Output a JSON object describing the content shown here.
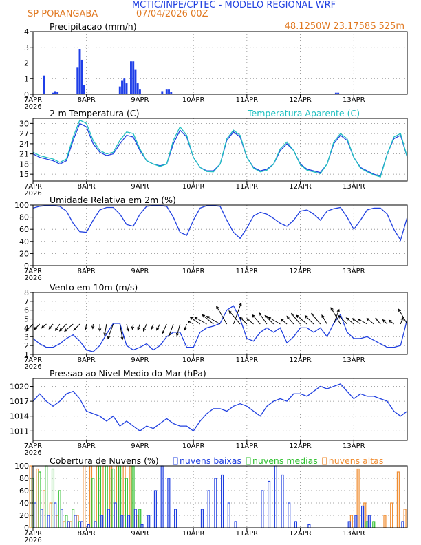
{
  "header": {
    "title": "MCTIC/INPE/CPTEC - MODELO REGIONAL WRF",
    "station": "SP PORANGABA",
    "run": "07/04/2026 00Z",
    "location": "48.1250W 23.1758S 525m"
  },
  "chart_data": [
    {
      "type": "bar",
      "title": "Precipitacao (mm/h)",
      "color": "#1f3fe8",
      "x": [
        5,
        9,
        10,
        11,
        20,
        21,
        22,
        23,
        39,
        40,
        41,
        42,
        44,
        45,
        46,
        47,
        48,
        58,
        60,
        61,
        62,
        136,
        137
      ],
      "values": [
        1.2,
        0.1,
        0.2,
        0.15,
        1.7,
        2.9,
        2.2,
        0.6,
        0.5,
        0.9,
        1.0,
        0.7,
        2.1,
        2.1,
        1.6,
        0.7,
        0.3,
        0.2,
        0.3,
        0.3,
        0.15,
        0.1,
        0.1
      ],
      "xlim": [
        0,
        168
      ],
      "xticks": [
        {
          "value": 0,
          "label": "7APR"
        },
        {
          "value": 24,
          "label": "8APR"
        },
        {
          "value": 48,
          "label": "9APR"
        },
        {
          "value": 72,
          "label": "10APR"
        },
        {
          "value": 96,
          "label": "11APR"
        },
        {
          "value": 120,
          "label": "12APR"
        },
        {
          "value": 144,
          "label": "13APR"
        }
      ],
      "year_label": "2026",
      "ylim": [
        0,
        4
      ],
      "yticks": [
        0,
        1,
        2,
        3,
        4
      ],
      "grid": true
    },
    {
      "type": "line",
      "title": "2-m Temperatura (C)",
      "x": [
        0,
        3,
        6,
        9,
        12,
        15,
        18,
        21,
        24,
        27,
        30,
        33,
        36,
        39,
        42,
        45,
        48,
        51,
        54,
        57,
        60,
        63,
        66,
        69,
        72,
        75,
        78,
        81,
        84,
        87,
        90,
        93,
        96,
        99,
        102,
        105,
        108,
        111,
        114,
        117,
        120,
        123,
        126,
        129,
        132,
        135,
        138,
        141,
        144,
        147,
        150,
        153,
        156,
        159,
        162,
        165,
        168
      ],
      "series": [
        {
          "color": "#2040e0",
          "values": [
            21,
            20,
            19.5,
            19,
            18,
            19,
            25,
            30,
            29,
            24,
            21.5,
            20.5,
            21,
            24,
            26.5,
            26,
            22,
            19,
            18,
            17.5,
            18,
            24,
            28,
            26,
            20,
            17,
            16,
            16,
            18,
            25,
            27.5,
            26,
            20,
            17,
            16,
            16.5,
            18,
            22,
            24,
            22,
            18,
            16.5,
            16,
            15.5,
            18,
            24,
            26.5,
            25,
            20,
            17,
            16,
            15,
            14.5,
            21,
            25.5,
            26.5,
            20
          ]
        },
        {
          "name": "Temperatura Aparente (C)",
          "color": "#20c0c0",
          "values": [
            21.5,
            20.5,
            20,
            19.5,
            18.5,
            19.5,
            26,
            31,
            30,
            25,
            22,
            21,
            21.5,
            25,
            27.5,
            27,
            22.5,
            19,
            18,
            17.3,
            18,
            25,
            29,
            26.5,
            20,
            17,
            15.8,
            15.7,
            18,
            25.5,
            28,
            26.5,
            20,
            16.8,
            15.7,
            16.2,
            18,
            22.5,
            24.5,
            22,
            17.8,
            16.2,
            15.7,
            15.2,
            18,
            24.5,
            27,
            25.5,
            20,
            16.8,
            15.7,
            14.8,
            14.2,
            21,
            26,
            27,
            20
          ]
        }
      ],
      "xlim": [
        0,
        168
      ],
      "xticks": [
        {
          "value": 0,
          "label": "7APR"
        },
        {
          "value": 24,
          "label": "8APR"
        },
        {
          "value": 48,
          "label": "9APR"
        },
        {
          "value": 72,
          "label": "10APR"
        },
        {
          "value": 96,
          "label": "11APR"
        },
        {
          "value": 120,
          "label": "12APR"
        },
        {
          "value": 144,
          "label": "13APR"
        }
      ],
      "year_label": "2026",
      "ylim": [
        13,
        31.5
      ],
      "yticks": [
        15,
        18,
        21,
        24,
        27,
        30
      ],
      "grid": true
    },
    {
      "type": "line",
      "title": "Umidade Relativa em 2m (%)",
      "x": [
        0,
        3,
        6,
        9,
        12,
        15,
        18,
        21,
        24,
        27,
        30,
        33,
        36,
        39,
        42,
        45,
        48,
        51,
        54,
        57,
        60,
        63,
        66,
        69,
        72,
        75,
        78,
        81,
        84,
        87,
        90,
        93,
        96,
        99,
        102,
        105,
        108,
        111,
        114,
        117,
        120,
        123,
        126,
        129,
        132,
        135,
        138,
        141,
        144,
        147,
        150,
        153,
        156,
        159,
        162,
        165,
        168
      ],
      "series": [
        {
          "color": "#2040e0",
          "values": [
            95,
            98,
            99,
            99,
            98,
            90,
            70,
            56,
            55,
            75,
            92,
            96,
            96,
            85,
            68,
            65,
            85,
            98,
            99,
            99,
            98,
            80,
            55,
            50,
            75,
            95,
            99,
            99,
            98,
            75,
            55,
            45,
            62,
            82,
            88,
            85,
            78,
            70,
            65,
            75,
            90,
            92,
            85,
            75,
            90,
            94,
            96,
            80,
            60,
            75,
            92,
            95,
            95,
            85,
            60,
            42,
            80
          ]
        }
      ],
      "xlim": [
        0,
        168
      ],
      "xticks": [
        {
          "value": 0,
          "label": "7APR"
        },
        {
          "value": 24,
          "label": "8APR"
        },
        {
          "value": 48,
          "label": "9APR"
        },
        {
          "value": 72,
          "label": "10APR"
        },
        {
          "value": 96,
          "label": "11APR"
        },
        {
          "value": 120,
          "label": "12APR"
        },
        {
          "value": 144,
          "label": "13APR"
        }
      ],
      "year_label": "2026",
      "ylim": [
        0,
        100
      ],
      "yticks": [
        0,
        20,
        40,
        60,
        80,
        100
      ],
      "grid": true
    },
    {
      "type": "line",
      "title": "Vento em 10m (m/s)",
      "x": [
        0,
        3,
        6,
        9,
        12,
        15,
        18,
        21,
        24,
        27,
        30,
        33,
        36,
        39,
        42,
        45,
        48,
        51,
        54,
        57,
        60,
        63,
        66,
        69,
        72,
        75,
        78,
        81,
        84,
        87,
        90,
        93,
        96,
        99,
        102,
        105,
        108,
        111,
        114,
        117,
        120,
        123,
        126,
        129,
        132,
        135,
        138,
        141,
        144,
        147,
        150,
        153,
        156,
        159,
        162,
        165,
        168
      ],
      "series": [
        {
          "color": "#2040e0",
          "values": [
            2.8,
            2.2,
            1.8,
            1.8,
            2.2,
            2.8,
            3.2,
            2.5,
            1.5,
            1.3,
            2.0,
            3.3,
            4.5,
            4.5,
            2.0,
            1.5,
            1.8,
            2.2,
            1.5,
            2.0,
            3.0,
            3.5,
            3.5,
            1.8,
            1.8,
            3.5,
            4.0,
            4.2,
            4.5,
            6.0,
            6.5,
            5.0,
            2.8,
            2.5,
            3.5,
            4.0,
            3.5,
            4.0,
            2.3,
            3.0,
            4.0,
            4.0,
            3.5,
            4.0,
            3.0,
            4.5,
            5.5,
            3.5,
            2.8,
            2.8,
            3.0,
            2.6,
            2.2,
            1.8,
            1.8,
            2.0,
            5.0
          ]
        }
      ],
      "arrows": {
        "color": "#000000",
        "directions": [
          225,
          225,
          230,
          220,
          215,
          225,
          230,
          225,
          190,
          185,
          180,
          190,
          200,
          170,
          165,
          190,
          200,
          205,
          200,
          210,
          205,
          200,
          195,
          200,
          300,
          305,
          300,
          310,
          300,
          330,
          20,
          320,
          315,
          310,
          320,
          325,
          315,
          300,
          310,
          320,
          320,
          310,
          315,
          320,
          330,
          20,
          330,
          315,
          310,
          305,
          300,
          310,
          320,
          315,
          310,
          20,
          330
        ]
      },
      "xlim": [
        0,
        168
      ],
      "xticks": [
        {
          "value": 0,
          "label": "7APR"
        },
        {
          "value": 24,
          "label": "8APR"
        },
        {
          "value": 48,
          "label": "9APR"
        },
        {
          "value": 72,
          "label": "10APR"
        },
        {
          "value": 96,
          "label": "11APR"
        },
        {
          "value": 120,
          "label": "12APR"
        },
        {
          "value": 144,
          "label": "13APR"
        }
      ],
      "year_label": "2026",
      "ylim": [
        1,
        8
      ],
      "yticks": [
        1,
        2,
        3,
        4,
        5,
        6,
        7,
        8
      ],
      "grid": true
    },
    {
      "type": "line",
      "title": "Pressao ao Nivel Medio do Mar (hPa)",
      "x": [
        0,
        3,
        6,
        9,
        12,
        15,
        18,
        21,
        24,
        27,
        30,
        33,
        36,
        39,
        42,
        45,
        48,
        51,
        54,
        57,
        60,
        63,
        66,
        69,
        72,
        75,
        78,
        81,
        84,
        87,
        90,
        93,
        96,
        99,
        102,
        105,
        108,
        111,
        114,
        117,
        120,
        123,
        126,
        129,
        132,
        135,
        138,
        141,
        144,
        147,
        150,
        153,
        156,
        159,
        162,
        165,
        168
      ],
      "series": [
        {
          "color": "#2040e0",
          "values": [
            1017,
            1018.5,
            1017,
            1016,
            1017,
            1018.5,
            1019,
            1017.5,
            1015,
            1014.5,
            1014,
            1013,
            1014,
            1012,
            1013,
            1012,
            1011,
            1012,
            1011.5,
            1012.5,
            1013.5,
            1012.5,
            1012,
            1012,
            1011,
            1013,
            1014.5,
            1015.5,
            1015.5,
            1015,
            1016,
            1016.5,
            1016,
            1015,
            1014,
            1016,
            1017,
            1017.5,
            1017,
            1018.5,
            1018.5,
            1018,
            1019,
            1020,
            1019.5,
            1020,
            1020.5,
            1019,
            1017.5,
            1018.5,
            1018,
            1018,
            1017.5,
            1017,
            1015,
            1014,
            1015
          ]
        }
      ],
      "xlim": [
        0,
        168
      ],
      "xticks": [
        {
          "value": 0,
          "label": "7APR"
        },
        {
          "value": 24,
          "label": "8APR"
        },
        {
          "value": 48,
          "label": "9APR"
        },
        {
          "value": 72,
          "label": "10APR"
        },
        {
          "value": 96,
          "label": "11APR"
        },
        {
          "value": 120,
          "label": "12APR"
        },
        {
          "value": 144,
          "label": "13APR"
        }
      ],
      "year_label": "2026",
      "ylim": [
        1009.1,
        1021.6
      ],
      "yticks": [
        1011,
        1014,
        1017,
        1020
      ],
      "grid": true
    },
    {
      "type": "bar",
      "title": "Cobertura de Nuvens (%)",
      "x": [
        0,
        3,
        6,
        9,
        12,
        15,
        18,
        21,
        24,
        27,
        30,
        33,
        36,
        39,
        42,
        45,
        48,
        51,
        54,
        57,
        60,
        63,
        66,
        69,
        72,
        75,
        78,
        81,
        84,
        87,
        90,
        93,
        96,
        99,
        102,
        105,
        108,
        111,
        114,
        117,
        120,
        123,
        126,
        129,
        132,
        135,
        138,
        141,
        144,
        147,
        150,
        153,
        156,
        159,
        162,
        165,
        168
      ],
      "series": [
        {
          "name": "nuvens altas",
          "color": "#f08c30",
          "values": [
            100,
            95,
            60,
            40,
            20,
            10,
            10,
            20,
            100,
            100,
            100,
            100,
            100,
            100,
            100,
            100,
            20,
            0,
            0,
            0,
            0,
            0,
            0,
            0,
            0,
            0,
            0,
            0,
            0,
            0,
            0,
            0,
            0,
            0,
            0,
            0,
            0,
            0,
            0,
            0,
            0,
            0,
            0,
            0,
            0,
            0,
            0,
            0,
            20,
            95,
            40,
            0,
            0,
            20,
            40,
            90,
            30
          ]
        },
        {
          "name": "nuvens medias",
          "color": "#30c030",
          "values": [
            80,
            90,
            100,
            95,
            60,
            20,
            30,
            10,
            0,
            80,
            100,
            100,
            95,
            100,
            80,
            100,
            30,
            0,
            0,
            0,
            0,
            0,
            0,
            0,
            0,
            0,
            0,
            0,
            0,
            0,
            0,
            0,
            0,
            0,
            0,
            0,
            0,
            0,
            0,
            0,
            0,
            0,
            0,
            0,
            0,
            0,
            0,
            0,
            0,
            0,
            10,
            10,
            0,
            0,
            0,
            0,
            0
          ]
        },
        {
          "name": "nuvens baixas",
          "color": "#2040e0",
          "values": [
            40,
            30,
            20,
            40,
            30,
            10,
            20,
            10,
            5,
            10,
            20,
            30,
            40,
            20,
            20,
            30,
            5,
            20,
            60,
            100,
            80,
            30,
            0,
            0,
            0,
            30,
            60,
            80,
            85,
            40,
            10,
            0,
            0,
            0,
            60,
            75,
            100,
            85,
            40,
            10,
            0,
            5,
            0,
            0,
            0,
            0,
            0,
            10,
            20,
            35,
            20,
            0,
            0,
            0,
            0,
            10,
            0
          ]
        }
      ],
      "xlim": [
        0,
        168
      ],
      "xticks": [
        {
          "value": 0,
          "label": "7APR"
        },
        {
          "value": 24,
          "label": "8APR"
        },
        {
          "value": 48,
          "label": "9APR"
        },
        {
          "value": 72,
          "label": "10APR"
        },
        {
          "value": 96,
          "label": "11APR"
        },
        {
          "value": 120,
          "label": "12APR"
        },
        {
          "value": 144,
          "label": "13APR"
        }
      ],
      "year_label": "2026",
      "ylim": [
        0,
        100
      ],
      "yticks": [
        0,
        20,
        40,
        60,
        80,
        100
      ],
      "grid": true
    }
  ]
}
